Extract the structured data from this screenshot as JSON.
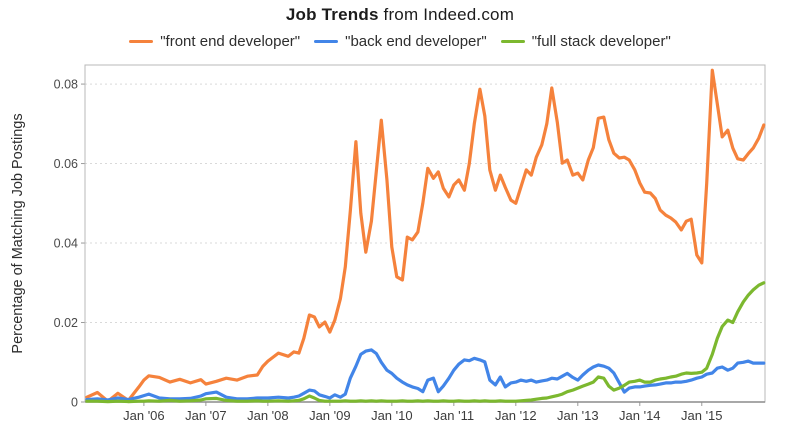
{
  "title": {
    "bold": "Job Trends",
    "rest": " from Indeed.com"
  },
  "legend": [
    {
      "label": "\"front end developer\"",
      "color": "#F5823C"
    },
    {
      "label": "\"back end developer\"",
      "color": "#4285E8"
    },
    {
      "label": "\"full stack developer\"",
      "color": "#7CB82F"
    }
  ],
  "chart_data": {
    "type": "line",
    "title": "Job Trends from Indeed.com",
    "xlabel": "",
    "ylabel": "Percentage of Matching Job Postings",
    "ylim": [
      0,
      0.0848
    ],
    "xlim": [
      2005.05,
      2016.02
    ],
    "grid": "horizontal dotted lines at y tick values above 0",
    "legend_position": "top",
    "y_ticks": [
      {
        "label": "0",
        "value": 0
      },
      {
        "label": "0.02",
        "value": 0.02
      },
      {
        "label": "0.04",
        "value": 0.04
      },
      {
        "label": "0.06",
        "value": 0.06
      },
      {
        "label": "0.08",
        "value": 0.08
      }
    ],
    "x_ticks": [
      {
        "label": "Jan '06",
        "value": 2006
      },
      {
        "label": "Jan '07",
        "value": 2007
      },
      {
        "label": "Jan '08",
        "value": 2008
      },
      {
        "label": "Jan '09",
        "value": 2009
      },
      {
        "label": "Jan '10",
        "value": 2010
      },
      {
        "label": "Jan '11",
        "value": 2011
      },
      {
        "label": "Jan '12",
        "value": 2012
      },
      {
        "label": "Jan '13",
        "value": 2013
      },
      {
        "label": "Jan '14",
        "value": 2014
      },
      {
        "label": "Jan '15",
        "value": 2015
      }
    ],
    "x": [
      2005.08,
      2005.25,
      2005.42,
      2005.58,
      2005.75,
      2005.92,
      2006.0,
      2006.08,
      2006.25,
      2006.42,
      2006.58,
      2006.75,
      2006.92,
      2007.0,
      2007.17,
      2007.33,
      2007.5,
      2007.67,
      2007.83,
      2007.92,
      2008.0,
      2008.17,
      2008.33,
      2008.42,
      2008.5,
      2008.58,
      2008.67,
      2008.75,
      2008.83,
      2008.92,
      2009.0,
      2009.08,
      2009.17,
      2009.25,
      2009.33,
      2009.42,
      2009.5,
      2009.58,
      2009.67,
      2009.75,
      2009.83,
      2009.92,
      2010.0,
      2010.08,
      2010.17,
      2010.25,
      2010.33,
      2010.42,
      2010.5,
      2010.58,
      2010.67,
      2010.75,
      2010.83,
      2010.92,
      2011.0,
      2011.08,
      2011.17,
      2011.25,
      2011.33,
      2011.42,
      2011.5,
      2011.58,
      2011.67,
      2011.75,
      2011.83,
      2011.92,
      2012.0,
      2012.08,
      2012.17,
      2012.25,
      2012.33,
      2012.42,
      2012.5,
      2012.58,
      2012.67,
      2012.75,
      2012.83,
      2012.92,
      2013.0,
      2013.08,
      2013.17,
      2013.25,
      2013.33,
      2013.42,
      2013.5,
      2013.58,
      2013.67,
      2013.75,
      2013.83,
      2013.92,
      2014.0,
      2014.08,
      2014.17,
      2014.25,
      2014.33,
      2014.42,
      2014.5,
      2014.58,
      2014.67,
      2014.75,
      2014.83,
      2014.92,
      2015.0,
      2015.08,
      2015.17,
      2015.25,
      2015.33,
      2015.42,
      2015.5,
      2015.58,
      2015.67,
      2015.75,
      2015.83,
      2015.92,
      2016.0
    ],
    "series": [
      {
        "name": "\"front end developer\"",
        "color": "#F5823C",
        "values": [
          0.0012,
          0.0024,
          0.0002,
          0.0022,
          0.0004,
          0.0038,
          0.0055,
          0.0066,
          0.0062,
          0.005,
          0.0057,
          0.0048,
          0.0056,
          0.0045,
          0.0052,
          0.006,
          0.0055,
          0.0065,
          0.0068,
          0.009,
          0.0103,
          0.0123,
          0.0115,
          0.0126,
          0.0123,
          0.016,
          0.0219,
          0.0214,
          0.0189,
          0.0201,
          0.0176,
          0.0206,
          0.026,
          0.034,
          0.048,
          0.0655,
          0.0475,
          0.0377,
          0.0455,
          0.058,
          0.0709,
          0.056,
          0.039,
          0.0315,
          0.0307,
          0.0415,
          0.0408,
          0.0428,
          0.05,
          0.0588,
          0.0563,
          0.0579,
          0.0538,
          0.0516,
          0.0546,
          0.0559,
          0.0533,
          0.06,
          0.07,
          0.0787,
          0.072,
          0.0584,
          0.0533,
          0.0571,
          0.054,
          0.0508,
          0.05,
          0.054,
          0.0584,
          0.0571,
          0.0616,
          0.0647,
          0.07,
          0.079,
          0.0704,
          0.0601,
          0.0609,
          0.0571,
          0.0576,
          0.0559,
          0.0609,
          0.064,
          0.0714,
          0.0717,
          0.066,
          0.0626,
          0.0614,
          0.0616,
          0.0609,
          0.0584,
          0.0551,
          0.0528,
          0.0526,
          0.0512,
          0.0483,
          0.047,
          0.0463,
          0.0453,
          0.0433,
          0.0455,
          0.046,
          0.037,
          0.035,
          0.055,
          0.0835,
          0.075,
          0.0667,
          0.0684,
          0.0639,
          0.0612,
          0.0609,
          0.0625,
          0.0639,
          0.0664,
          0.0697
        ]
      },
      {
        "name": "\"back end developer\"",
        "color": "#4285E8",
        "values": [
          0.0006,
          0.0008,
          0.0005,
          0.001,
          0.0006,
          0.0012,
          0.0016,
          0.002,
          0.001,
          0.0008,
          0.0008,
          0.0009,
          0.0015,
          0.0021,
          0.0025,
          0.0012,
          0.0008,
          0.0008,
          0.001,
          0.001,
          0.001,
          0.0012,
          0.001,
          0.0012,
          0.0015,
          0.0022,
          0.003,
          0.0028,
          0.0018,
          0.0014,
          0.001,
          0.0018,
          0.0012,
          0.002,
          0.006,
          0.009,
          0.012,
          0.0128,
          0.0131,
          0.0122,
          0.01,
          0.008,
          0.0072,
          0.006,
          0.005,
          0.0043,
          0.0038,
          0.0034,
          0.0026,
          0.0055,
          0.006,
          0.0026,
          0.004,
          0.006,
          0.008,
          0.0095,
          0.0106,
          0.0104,
          0.011,
          0.0106,
          0.0101,
          0.0055,
          0.0043,
          0.0063,
          0.0038,
          0.0048,
          0.005,
          0.0055,
          0.0052,
          0.0055,
          0.005,
          0.0053,
          0.0055,
          0.006,
          0.0058,
          0.0065,
          0.0072,
          0.0062,
          0.0055,
          0.0068,
          0.008,
          0.0088,
          0.0093,
          0.009,
          0.0085,
          0.0073,
          0.0048,
          0.0025,
          0.0035,
          0.0038,
          0.0038,
          0.004,
          0.0042,
          0.0043,
          0.0045,
          0.0048,
          0.0048,
          0.005,
          0.005,
          0.0052,
          0.0055,
          0.006,
          0.0063,
          0.007,
          0.0073,
          0.0085,
          0.0088,
          0.008,
          0.0085,
          0.0098,
          0.01,
          0.0103,
          0.0098,
          0.0098,
          0.0098
        ]
      },
      {
        "name": "\"full stack developer\"",
        "color": "#7CB82F",
        "values": [
          0.0002,
          0.0002,
          0.0001,
          0.0002,
          0.0001,
          0.0002,
          0.0002,
          0.0003,
          0.0002,
          0.0004,
          0.0002,
          0.0003,
          0.0005,
          0.0008,
          0.0009,
          0.0004,
          0.0002,
          0.0002,
          0.0003,
          0.0002,
          0.0002,
          0.0003,
          0.0002,
          0.0003,
          0.0004,
          0.0008,
          0.0015,
          0.001,
          0.0004,
          0.0002,
          0.0002,
          0.0002,
          0.0002,
          0.0003,
          0.0002,
          0.0002,
          0.0003,
          0.0002,
          0.0003,
          0.0002,
          0.0003,
          0.0002,
          0.0002,
          0.0002,
          0.0003,
          0.0002,
          0.0002,
          0.0003,
          0.0002,
          0.0003,
          0.0002,
          0.0002,
          0.0003,
          0.0002,
          0.0002,
          0.0003,
          0.0002,
          0.0002,
          0.0003,
          0.0002,
          0.0003,
          0.0002,
          0.0002,
          0.0003,
          0.0002,
          0.0002,
          0.0002,
          0.0003,
          0.0004,
          0.0005,
          0.0007,
          0.0009,
          0.001,
          0.0013,
          0.0016,
          0.002,
          0.0026,
          0.003,
          0.0035,
          0.004,
          0.0045,
          0.005,
          0.0063,
          0.006,
          0.004,
          0.003,
          0.0035,
          0.0042,
          0.005,
          0.0052,
          0.0055,
          0.005,
          0.005,
          0.0055,
          0.0058,
          0.006,
          0.0063,
          0.0065,
          0.007,
          0.0073,
          0.0072,
          0.0073,
          0.0075,
          0.0085,
          0.012,
          0.016,
          0.019,
          0.0206,
          0.02,
          0.0227,
          0.0252,
          0.0269,
          0.0282,
          0.0294,
          0.03
        ]
      }
    ]
  }
}
